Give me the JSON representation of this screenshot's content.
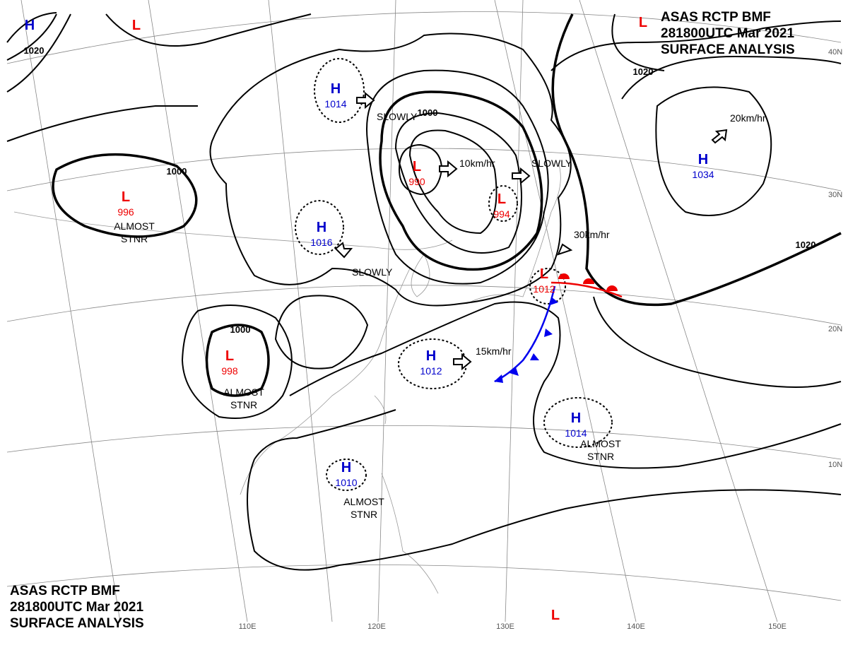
{
  "header_top": [
    "ASAS   RCTP   BMF",
    "281800UTC   Mar   2021",
    "SURFACE  ANALYSIS"
  ],
  "header_bottom": [
    "ASAS   RCTP   BMF",
    "281800UTC   Mar   2021",
    "SURFACE  ANALYSIS"
  ],
  "centers": [
    {
      "type": "H"
    },
    {
      "type": "L"
    },
    {
      "type": "L"
    },
    {
      "type": "H",
      "pressure": 1014
    },
    {
      "type": "H",
      "pressure": 1016
    },
    {
      "type": "L",
      "pressure": 990
    },
    {
      "type": "L",
      "pressure": 994
    },
    {
      "type": "L",
      "pressure": 996
    },
    {
      "type": "L",
      "pressure": 998
    },
    {
      "type": "H",
      "pressure": 1012
    },
    {
      "type": "H",
      "pressure": 1034
    },
    {
      "type": "H",
      "pressure": 1014
    },
    {
      "type": "H",
      "pressure": 1010
    },
    {
      "type": "L",
      "pressure": 1012
    },
    {
      "type": "L"
    }
  ],
  "isobar_labels": [
    "1020",
    "1000",
    "1000",
    "1000",
    "1020",
    "1020"
  ],
  "motions": [
    "SLOWLY",
    "10km/hr",
    "SLOWLY",
    "SLOWLY",
    "30km/hr",
    "15km/hr",
    "20km/hr"
  ],
  "notes": [
    [
      "ALMOST",
      "STNR"
    ],
    [
      "ALMOST",
      "STNR"
    ],
    [
      "ALMOST",
      "STNR"
    ],
    [
      "ALMOST",
      "STNR"
    ]
  ],
  "latitudes": [
    "40N",
    "30N",
    "20N",
    "10N"
  ],
  "longitudes": [
    "110E",
    "120E",
    "130E",
    "140E",
    "150E"
  ]
}
